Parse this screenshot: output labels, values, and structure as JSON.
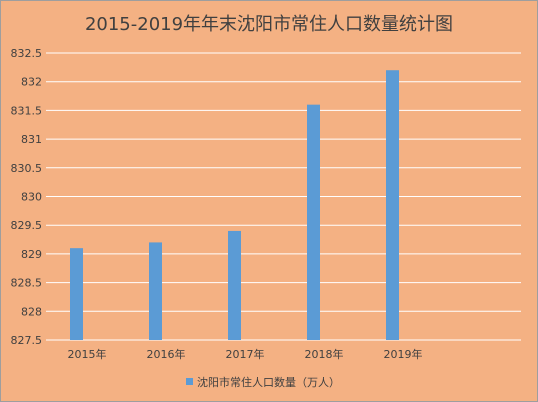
{
  "chart_data": {
    "type": "bar",
    "title": "2015-2019年年末沈阳市常住人口数量统计图",
    "categories": [
      "2015年",
      "2016年",
      "2017年",
      "2018年",
      "2019年"
    ],
    "series": [
      {
        "name": "沈阳市常住人口数量（万人）",
        "values": [
          829.1,
          829.2,
          829.4,
          831.6,
          832.2
        ]
      }
    ],
    "ylim": [
      827.5,
      832.5
    ],
    "yticks": [
      "827.5",
      "828",
      "828.5",
      "829",
      "829.5",
      "830",
      "830.5",
      "831",
      "831.5",
      "832",
      "832.5"
    ],
    "grid": true,
    "legend_position": "bottom",
    "colors": {
      "bar": "#5b9bd5",
      "background": "#f4b183",
      "grid": "#ffffff",
      "text": "#404040"
    }
  }
}
